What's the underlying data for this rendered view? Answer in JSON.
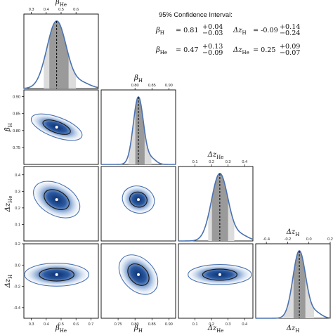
{
  "ci_panel": {
    "title": "95% Confidence Interval:",
    "entries": [
      {
        "label": "β_H",
        "value": "0.81",
        "plus": "+0.04",
        "minus": "−0.03"
      },
      {
        "label": "Δz_H",
        "value": "-0.09",
        "plus": "+0.14",
        "minus": "−0.24"
      },
      {
        "label": "β_He",
        "value": "0.47",
        "plus": "+0.13",
        "minus": "−0.09"
      },
      {
        "label": "Δz_He",
        "value": "0.25",
        "plus": "+0.09",
        "minus": "−0.07"
      }
    ]
  },
  "colors": {
    "line": "#4a72b0",
    "fill_light": "#dcdcdc",
    "fill_dark": "#9a9a9a",
    "contour_inner": "#1c1c1c",
    "density_center": "#0c2f6b"
  },
  "chart_data": {
    "type": "corner",
    "parameters": [
      {
        "name": "beta_He",
        "label": "β_He",
        "range": [
          0.25,
          0.75
        ],
        "ticks": [
          "0.3",
          "0.4",
          "0.5",
          "0.6",
          "0.7"
        ],
        "median": 0.47,
        "ci68": [
          0.42,
          0.55
        ],
        "ci95": [
          0.38,
          0.6
        ],
        "top_label": "β_He",
        "top_ticks": [
          "0.3",
          "0.4",
          "0.5",
          "0.6"
        ]
      },
      {
        "name": "beta_H",
        "label": "β_H",
        "range": [
          0.7,
          0.92
        ],
        "ticks": [
          "0.75",
          "0.80",
          "0.85",
          "0.90"
        ],
        "median": 0.81,
        "ci68": [
          0.8,
          0.83
        ],
        "ci95": [
          0.78,
          0.85
        ],
        "top_label": "β_H",
        "top_ticks": [
          "0.80",
          "0.85",
          "0.90"
        ]
      },
      {
        "name": "dz_He",
        "label": "Δz_He",
        "range": [
          0.0,
          0.45
        ],
        "ticks": [
          "0.1",
          "0.2",
          "0.3",
          "0.4"
        ],
        "median": 0.25,
        "ci68": [
          0.2,
          0.3
        ],
        "ci95": [
          0.18,
          0.34
        ],
        "top_label": "Δz_He",
        "top_ticks": [
          "0.1",
          "0.2",
          "0.3",
          "0.4"
        ]
      },
      {
        "name": "dz_H",
        "label": "Δz_H",
        "range": [
          -0.5,
          0.2
        ],
        "ticks": [
          "-0.4",
          "-0.2",
          "0.0",
          "0.2"
        ],
        "median": -0.09,
        "ci68": [
          -0.15,
          -0.03
        ],
        "ci95": [
          -0.33,
          0.05
        ],
        "top_label": "Δz_H",
        "top_ticks": [
          "-0.4",
          "-0.2",
          "0.0",
          "0.2"
        ]
      }
    ],
    "joint": [
      {
        "x": 0,
        "y": 1,
        "center": [
          0.47,
          0.81
        ],
        "sigma": [
          0.075,
          0.022
        ],
        "rho": -0.55
      },
      {
        "x": 0,
        "y": 2,
        "center": [
          0.47,
          0.25
        ],
        "sigma": [
          0.07,
          0.07
        ],
        "rho": -0.5
      },
      {
        "x": 1,
        "y": 2,
        "center": [
          0.81,
          0.25
        ],
        "sigma": [
          0.02,
          0.06
        ],
        "rho": -0.2
      },
      {
        "x": 0,
        "y": 3,
        "center": [
          0.47,
          -0.09
        ],
        "sigma": [
          0.09,
          0.08
        ],
        "rho": 0.0
      },
      {
        "x": 1,
        "y": 3,
        "center": [
          0.81,
          -0.09
        ],
        "sigma": [
          0.028,
          0.11
        ],
        "rho": -0.85
      },
      {
        "x": 2,
        "y": 3,
        "center": [
          0.25,
          -0.09
        ],
        "sigma": [
          0.08,
          0.07
        ],
        "rho": 0.0
      }
    ]
  }
}
